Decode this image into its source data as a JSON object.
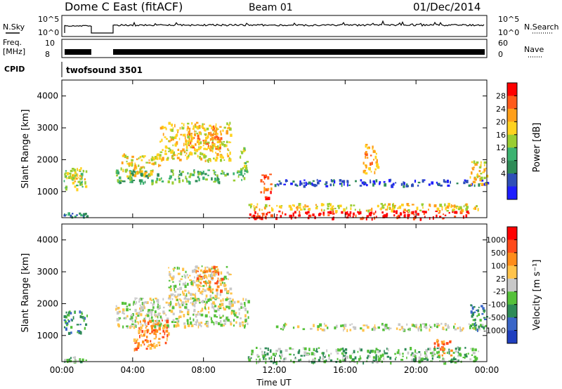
{
  "header": {
    "title": "Dome C East (fitACF)",
    "beam": "Beam 01",
    "date": "01/Dec/2014"
  },
  "strips": {
    "nsky_label": "N.Sky",
    "nsky_ticks": [
      "10^5",
      "10^0"
    ],
    "nsearch_label": "N.Search",
    "freq_label": "Freq.",
    "freq_unit": "[MHz]",
    "freq_ticks": [
      "10",
      "8"
    ],
    "nave_label": "Nave",
    "nave_ticks": [
      "60",
      "0"
    ],
    "cpid_label": "CPID",
    "cpid_value": "twofsound 3501"
  },
  "chart_data": [
    {
      "type": "heatmap",
      "panel": "power",
      "ylabel": "Slant Range [km]",
      "xlabel": "Time UT",
      "xticks": [
        "00:00",
        "04:00",
        "08:00",
        "12:00",
        "16:00",
        "20:00",
        "00:00"
      ],
      "yticks": [
        1000,
        2000,
        3000,
        4000
      ],
      "ylim": [
        180,
        4500
      ],
      "xlim_hours": [
        0,
        24
      ],
      "colorbar": {
        "label": "Power [dB]",
        "ticks": [
          "28",
          "24",
          "20",
          "16",
          "12",
          "8",
          "4"
        ],
        "colors": [
          "#1e1eff",
          "#2f4fb8",
          "#2e8b57",
          "#3cb371",
          "#9acd32",
          "#ffd21e",
          "#ff9f1a",
          "#ff5a1a",
          "#ff0000"
        ]
      },
      "regions": [
        {
          "t0": 0.1,
          "t1": 1.4,
          "r0": 1100,
          "r1": 1800,
          "level": 4
        },
        {
          "t0": 0.2,
          "t1": 1.3,
          "r0": 1300,
          "r1": 1600,
          "level": 5
        },
        {
          "t0": 0.1,
          "t1": 1.5,
          "r0": 200,
          "r1": 350,
          "level": 2
        },
        {
          "t0": 3.0,
          "t1": 10.5,
          "r0": 1300,
          "r1": 1700,
          "level": 3
        },
        {
          "t0": 3.3,
          "t1": 5.5,
          "r0": 1500,
          "r1": 2200,
          "level": 5
        },
        {
          "t0": 5.5,
          "t1": 9.5,
          "r0": 2000,
          "r1": 3200,
          "level": 5
        },
        {
          "t0": 7.0,
          "t1": 9.0,
          "r0": 2400,
          "r1": 3100,
          "level": 6
        },
        {
          "t0": 10.0,
          "t1": 10.5,
          "r0": 1600,
          "r1": 2400,
          "level": 4
        },
        {
          "t0": 11.2,
          "t1": 11.8,
          "r0": 800,
          "r1": 1600,
          "level": 7
        },
        {
          "t0": 10.5,
          "t1": 23.0,
          "r0": 180,
          "r1": 420,
          "level": 8
        },
        {
          "t0": 10.5,
          "t1": 23.5,
          "r0": 420,
          "r1": 650,
          "level": 5
        },
        {
          "t0": 12.0,
          "t1": 24.0,
          "r0": 1200,
          "r1": 1400,
          "level": 1
        },
        {
          "t0": 17.0,
          "t1": 17.8,
          "r0": 1600,
          "r1": 2500,
          "level": 6
        },
        {
          "t0": 23.0,
          "t1": 24.0,
          "r0": 1200,
          "r1": 2000,
          "level": 5
        }
      ]
    },
    {
      "type": "heatmap",
      "panel": "velocity",
      "ylabel": "Slant Range [km]",
      "xlabel": "Time UT",
      "xticks": [
        "00:00",
        "04:00",
        "08:00",
        "12:00",
        "16:00",
        "20:00",
        "00:00"
      ],
      "yticks": [
        1000,
        2000,
        3000,
        4000
      ],
      "ylim": [
        180,
        4500
      ],
      "xlim_hours": [
        0,
        24
      ],
      "colorbar": {
        "label": "Velocity [m s⁻¹]",
        "ticks": [
          "1000",
          "500",
          "100",
          "25",
          "-25",
          "-100",
          "-500",
          "-1000"
        ],
        "colors": [
          "#1f3fbf",
          "#3a66c8",
          "#2e8b57",
          "#55c13a",
          "#c8c8c8",
          "#ffc34a",
          "#ff8c1a",
          "#ff4a1a",
          "#ff0000"
        ]
      },
      "regions": [
        {
          "t0": 0.1,
          "t1": 1.4,
          "r0": 1100,
          "r1": 1800,
          "level": 2
        },
        {
          "t0": 0.1,
          "t1": 1.5,
          "r0": 200,
          "r1": 350,
          "level": 3
        },
        {
          "t0": 3.0,
          "t1": 10.5,
          "r0": 1300,
          "r1": 2200,
          "level": 4
        },
        {
          "t0": 4.0,
          "t1": 6.0,
          "r0": 600,
          "r1": 1500,
          "level": 6
        },
        {
          "t0": 6.0,
          "t1": 9.5,
          "r0": 2000,
          "r1": 3200,
          "level": 4
        },
        {
          "t0": 7.5,
          "t1": 9.0,
          "r0": 2400,
          "r1": 3200,
          "level": 6
        },
        {
          "t0": 10.5,
          "t1": 23.5,
          "r0": 180,
          "r1": 650,
          "level": 3
        },
        {
          "t0": 12.0,
          "t1": 24.0,
          "r0": 1200,
          "r1": 1400,
          "level": 4
        },
        {
          "t0": 21.0,
          "t1": 22.0,
          "r0": 400,
          "r1": 900,
          "level": 6
        },
        {
          "t0": 23.0,
          "t1": 24.0,
          "r0": 1200,
          "r1": 2000,
          "level": 2
        }
      ]
    }
  ]
}
